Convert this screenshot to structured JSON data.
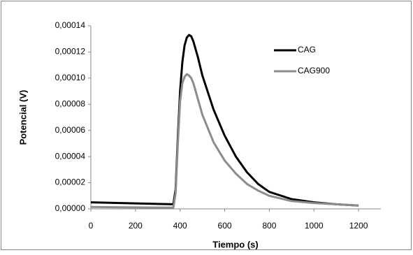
{
  "chart_data": {
    "type": "line",
    "x_label": "Tiempo (s)",
    "y_label": "Potencial (V)",
    "x": [
      0,
      100,
      200,
      300,
      370,
      380,
      390,
      400,
      410,
      420,
      430,
      440,
      450,
      460,
      480,
      500,
      550,
      600,
      650,
      700,
      750,
      800,
      900,
      1000,
      1100,
      1200
    ],
    "series": [
      {
        "name": "CAG",
        "color": "#000000",
        "values": [
          5e-06,
          4.6e-06,
          4.2e-06,
          3.8e-06,
          3.5e-06,
          1.5e-05,
          5.5e-05,
          9e-05,
          0.000112,
          0.000125,
          0.000131,
          0.000133,
          0.000132,
          0.000128,
          0.000116,
          0.000102,
          7.6e-05,
          5.6e-05,
          4e-05,
          2.8e-05,
          1.9e-05,
          1.3e-05,
          7.5e-06,
          5e-06,
          3.5e-06,
          2.5e-06
        ]
      },
      {
        "name": "CAG900",
        "color": "#8c8c8c",
        "values": [
          1.5e-06,
          1.3e-06,
          1.1e-06,
          1e-06,
          1e-06,
          1.2e-05,
          5e-05,
          8.2e-05,
          9.6e-05,
          0.000101,
          0.000103,
          0.000102,
          0.0001,
          9.6e-05,
          8.4e-05,
          7.2e-05,
          5.1e-05,
          3.7e-05,
          2.7e-05,
          1.9e-05,
          1.4e-05,
          1e-05,
          6e-06,
          4.5e-06,
          3.5e-06,
          2.5e-06
        ]
      }
    ],
    "xlim": [
      0,
      1300
    ],
    "xticks": [
      0,
      200,
      400,
      600,
      800,
      1000,
      1200
    ],
    "ylim": [
      0,
      0.00014
    ],
    "yticks": [
      {
        "value": 0,
        "label": "0,00000"
      },
      {
        "value": 2e-05,
        "label": "0,00002"
      },
      {
        "value": 4e-05,
        "label": "0,00004"
      },
      {
        "value": 6e-05,
        "label": "0,00006"
      },
      {
        "value": 8e-05,
        "label": "0,00008"
      },
      {
        "value": 0.0001,
        "label": "0,00010"
      },
      {
        "value": 0.00012,
        "label": "0,00012"
      },
      {
        "value": 0.00014,
        "label": "0,00014"
      }
    ],
    "legend": "top-right"
  }
}
